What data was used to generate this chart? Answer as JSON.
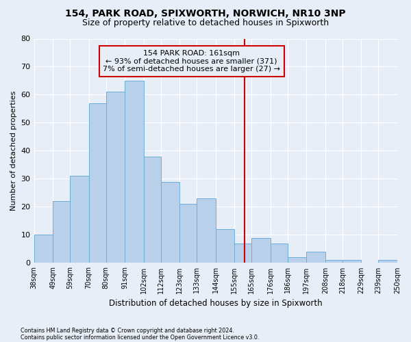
{
  "title1": "154, PARK ROAD, SPIXWORTH, NORWICH, NR10 3NP",
  "title2": "Size of property relative to detached houses in Spixworth",
  "xlabel": "Distribution of detached houses by size in Spixworth",
  "ylabel": "Number of detached properties",
  "footnote1": "Contains HM Land Registry data © Crown copyright and database right 2024.",
  "footnote2": "Contains public sector information licensed under the Open Government Licence v3.0.",
  "bin_edges": [
    38,
    49,
    59,
    70,
    80,
    91,
    102,
    112,
    123,
    133,
    144,
    155,
    165,
    176,
    186,
    197,
    208,
    218,
    229,
    239,
    250
  ],
  "bin_labels": [
    "38sqm",
    "49sqm",
    "59sqm",
    "70sqm",
    "80sqm",
    "91sqm",
    "102sqm",
    "112sqm",
    "123sqm",
    "133sqm",
    "144sqm",
    "155sqm",
    "165sqm",
    "176sqm",
    "186sqm",
    "197sqm",
    "208sqm",
    "218sqm",
    "229sqm",
    "239sqm",
    "250sqm"
  ],
  "bar_values": [
    10,
    22,
    31,
    57,
    61,
    65,
    38,
    29,
    21,
    23,
    12,
    7,
    9,
    7,
    2,
    4,
    1,
    1,
    0,
    1
  ],
  "bar_color": "#b8d0ea",
  "bar_edge_color": "#6aaed6",
  "vline_x": 161,
  "vline_color": "#cc0000",
  "annotation_text": "154 PARK ROAD: 161sqm\n← 93% of detached houses are smaller (371)\n7% of semi-detached houses are larger (27) →",
  "annotation_box_color": "#cc0000",
  "ylim": [
    0,
    80
  ],
  "yticks": [
    0,
    10,
    20,
    30,
    40,
    50,
    60,
    70,
    80
  ],
  "bg_color": "#e8eef8",
  "grid_color": "#ffffff",
  "title1_fontsize": 10,
  "title2_fontsize": 9,
  "annot_fontsize": 8,
  "ylabel_fontsize": 8,
  "xlabel_fontsize": 8.5
}
